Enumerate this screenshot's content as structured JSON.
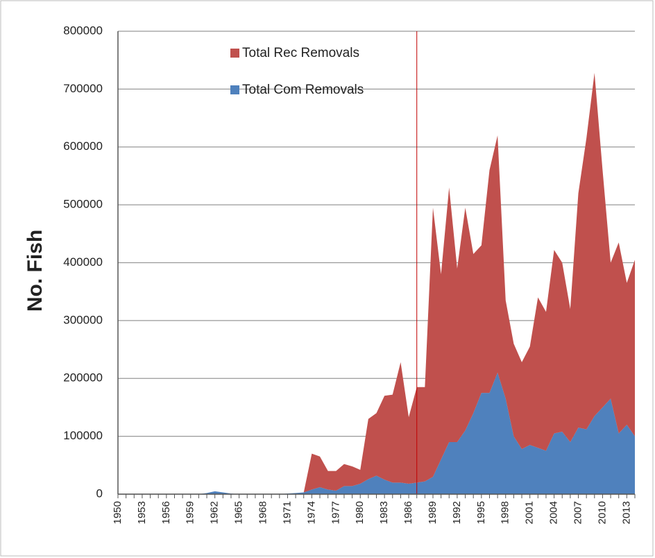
{
  "chart_data": {
    "type": "stacked_area",
    "y_label": "No. Fish",
    "x": [
      1950,
      1951,
      1952,
      1953,
      1954,
      1955,
      1956,
      1957,
      1958,
      1959,
      1960,
      1961,
      1962,
      1963,
      1964,
      1965,
      1966,
      1967,
      1968,
      1969,
      1970,
      1971,
      1972,
      1973,
      1974,
      1975,
      1976,
      1977,
      1978,
      1979,
      1980,
      1981,
      1982,
      1983,
      1984,
      1985,
      1986,
      1987,
      1988,
      1989,
      1990,
      1991,
      1992,
      1993,
      1994,
      1995,
      1996,
      1997,
      1998,
      1999,
      2000,
      2001,
      2002,
      2003,
      2004,
      2005,
      2006,
      2007,
      2008,
      2009,
      2010,
      2011,
      2012,
      2013,
      2014
    ],
    "series": [
      {
        "name": "Total Rec Removals",
        "color": "#c0504d",
        "values": [
          0,
          0,
          0,
          0,
          0,
          0,
          0,
          0,
          0,
          0,
          0,
          0,
          0,
          0,
          0,
          0,
          0,
          0,
          0,
          0,
          0,
          0,
          0,
          0,
          62000,
          53000,
          32000,
          34000,
          38000,
          34000,
          24000,
          104000,
          108000,
          145000,
          152000,
          208000,
          115000,
          165000,
          163000,
          465000,
          320000,
          440000,
          300000,
          385000,
          275000,
          255000,
          385000,
          410000,
          170000,
          160000,
          150000,
          170000,
          260000,
          240000,
          317000,
          292000,
          230000,
          405000,
          503000,
          593000,
          410000,
          235000,
          330000,
          245000,
          305000
        ]
      },
      {
        "name": "Total Com Removals",
        "color": "#4f81bd",
        "values": [
          0,
          0,
          0,
          0,
          0,
          0,
          0,
          0,
          0,
          0,
          0,
          2000,
          5000,
          3000,
          1000,
          0,
          0,
          0,
          0,
          0,
          0,
          1000,
          2000,
          3000,
          8000,
          12000,
          8000,
          6000,
          14000,
          14000,
          18000,
          26000,
          32000,
          25000,
          20000,
          20000,
          18000,
          20000,
          22000,
          30000,
          60000,
          90000,
          90000,
          110000,
          140000,
          175000,
          175000,
          210000,
          165000,
          100000,
          78000,
          85000,
          80000,
          75000,
          105000,
          108000,
          90000,
          115000,
          112000,
          135000,
          150000,
          165000,
          105000,
          120000,
          100000
        ]
      }
    ],
    "xlim": [
      1950,
      2014
    ],
    "xticks": [
      1950,
      1953,
      1956,
      1959,
      1962,
      1965,
      1968,
      1971,
      1974,
      1977,
      1980,
      1983,
      1986,
      1989,
      1992,
      1995,
      1998,
      2001,
      2004,
      2007,
      2010,
      2013
    ],
    "ylim": [
      0,
      800000
    ],
    "yticks": [
      0,
      100000,
      200000,
      300000,
      400000,
      500000,
      600000,
      700000,
      800000
    ],
    "grid": true,
    "reference_line": 1987,
    "reference_color": "#c00000"
  }
}
